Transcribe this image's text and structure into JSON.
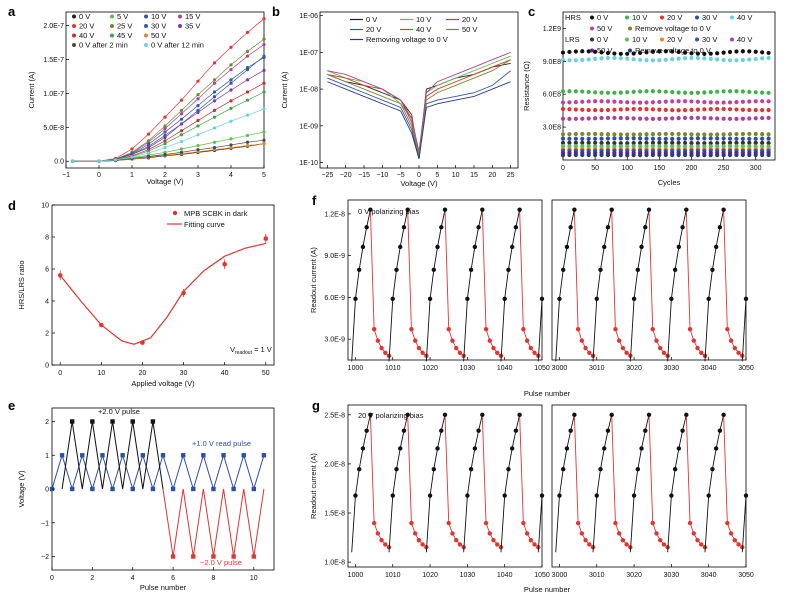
{
  "panels": {
    "a": {
      "label": "a",
      "xlabel": "Voltage (V)",
      "ylabel": "Current (A)",
      "xticks": [
        "−1",
        "0",
        "1",
        "2",
        "3",
        "4",
        "5"
      ],
      "yticks": [
        "0.0",
        "5.0E-8",
        "1.0E-7",
        "1.5E-7",
        "2.0E-7"
      ],
      "legend": [
        "0 V",
        "5 V",
        "10 V",
        "15 V",
        "20 V",
        "25 V",
        "30 V",
        "35 V",
        "40 V",
        "45 V",
        "50 V",
        "0 V after 2 min",
        "0 V after 12 min"
      ],
      "legend_colors": [
        "#222222",
        "#5cc24a",
        "#3556b0",
        "#b0409a",
        "#e03530",
        "#6f8a2e",
        "#2e5f9a",
        "#7a3ab0",
        "#c8302a",
        "#43a047",
        "#e8862a",
        "#4a4a4a",
        "#6cd0e0"
      ]
    },
    "b": {
      "label": "b",
      "xlabel": "Voltage (V)",
      "ylabel": "Current (A)",
      "xticks": [
        "−25",
        "−20",
        "−15",
        "−10",
        "−5",
        "0",
        "5",
        "10",
        "15",
        "20",
        "25"
      ],
      "yticks": [
        "1E-10",
        "1E-09",
        "1E-08",
        "1E-07",
        "1E-06"
      ],
      "legend": [
        "0 V",
        "10 V",
        "20 V",
        "20 V",
        "40 V",
        "50 V",
        "Removing voltage to 0 V"
      ],
      "legend_colors": [
        "#222222",
        "#5cc24a",
        "#e03530",
        "#3556b0",
        "#b0409a",
        "#7a8a2a",
        "#2a3a8a"
      ]
    },
    "c": {
      "label": "c",
      "xlabel": "Cycles",
      "ylabel": "Resistance (Ω)",
      "xticks": [
        "0",
        "50",
        "100",
        "150",
        "200",
        "250",
        "300"
      ],
      "yticks": [
        "3.0E8",
        "6.0E8",
        "9.0E8",
        "1.2E9"
      ],
      "hrs_label": "HRS",
      "lrs_label": "LRS",
      "hrs_legend": [
        "0 V",
        "10 V",
        "20 V",
        "30 V",
        "40 V",
        "50 V",
        "Remove voltage to 0 V"
      ],
      "lrs_legend": [
        "0 V",
        "10 V",
        "20 V",
        "30 V",
        "40 V",
        "50 V",
        "Remove voltage to 0 V"
      ],
      "hrs_colors": [
        "#111111",
        "#3fb34a",
        "#e03530",
        "#2c4fa8",
        "#6cd0e0",
        "#c040a8",
        "#7a8a2a"
      ],
      "lrs_colors": [
        "#333333",
        "#5cc24a",
        "#e8862a",
        "#3556b0",
        "#b0409a",
        "#5a2a8a",
        "#2a3a8a"
      ]
    },
    "d": {
      "label": "d",
      "xlabel": "Applied voltage (V)",
      "ylabel": "HRS/LRS ratio",
      "xticks": [
        "0",
        "10",
        "20",
        "30",
        "40",
        "50"
      ],
      "yticks": [
        "0",
        "2",
        "4",
        "6",
        "8",
        "10"
      ],
      "legend": [
        "MPB SCBK in dark",
        "Fitting curve"
      ],
      "annotation": "V",
      "annotation_sub": "readout",
      "annotation_tail": " = 1 V"
    },
    "e": {
      "label": "e",
      "xlabel": "Pulse number",
      "ylabel": "Voltage (V)",
      "xticks": [
        "0",
        "2",
        "4",
        "6",
        "8",
        "10"
      ],
      "yticks": [
        "−2",
        "−1",
        "0",
        "1",
        "2"
      ],
      "ann_write": "+2.0 V pulse",
      "ann_read": "+1.0 V read pulse",
      "ann_erase": "−2.0 V pulse"
    },
    "f": {
      "label": "f",
      "xlabel": "Pulse number",
      "ylabel": "Readout current (A)",
      "title": "0 V polarizing bias",
      "xticks_left": [
        "1000",
        "1010",
        "1020",
        "1030",
        "1040",
        "1050"
      ],
      "xticks_right": [
        "3000",
        "3010",
        "3020",
        "3030",
        "3040",
        "3050"
      ],
      "yticks": [
        "3.0E-9",
        "6.0E-9",
        "9.0E-9",
        "1.2E-8"
      ]
    },
    "g": {
      "label": "g",
      "xlabel": "Pulse number",
      "ylabel": "Readout current (A)",
      "title": "20 V polarizing bias",
      "xticks_left": [
        "1000",
        "1010",
        "1020",
        "1030",
        "1040",
        "1050"
      ],
      "xticks_right": [
        "3000",
        "3010",
        "3020",
        "3030",
        "3040",
        "3050"
      ],
      "yticks": [
        "1.0E-8",
        "1.5E-8",
        "2.0E-8",
        "2.5E-8"
      ]
    }
  },
  "chart_data": [
    {
      "panel": "a",
      "type": "line",
      "xlim": [
        -1,
        5
      ],
      "ylim": [
        -1e-08,
        2.2e-07
      ],
      "x": [
        -0.8,
        0.0,
        0.5,
        1.0,
        1.5,
        2.0,
        2.5,
        3.0,
        3.5,
        4.0,
        4.5,
        5.0
      ],
      "series": [
        {
          "name": "0 V",
          "values": [
            0,
            0,
            1e-09,
            3e-09,
            5e-09,
            8e-09,
            1e-08,
            1.3e-08,
            1.6e-08,
            1.9e-08,
            2.2e-08,
            2.6e-08
          ]
        },
        {
          "name": "5 V",
          "values": [
            0,
            0,
            2e-09,
            5e-09,
            9e-09,
            1.3e-08,
            1.8e-08,
            2.3e-08,
            2.8e-08,
            3.3e-08,
            3.8e-08,
            4.3e-08
          ]
        },
        {
          "name": "10 V",
          "values": [
            0,
            0,
            3e-09,
            1e-08,
            2e-08,
            3.5e-08,
            5.5e-08,
            7.5e-08,
            9.5e-08,
            1.15e-07,
            1.35e-07,
            1.55e-07
          ]
        },
        {
          "name": "15 V",
          "values": [
            0,
            0,
            3e-09,
            1.2e-08,
            2.8e-08,
            4.8e-08,
            7e-08,
            9.2e-08,
            1.15e-07,
            1.35e-07,
            1.55e-07,
            1.72e-07
          ]
        },
        {
          "name": "20 V",
          "values": [
            0,
            0,
            4e-09,
            1.8e-08,
            4e-08,
            6.5e-08,
            9e-08,
            1.18e-07,
            1.45e-07,
            1.68e-07,
            1.9e-07,
            2.1e-07
          ]
        },
        {
          "name": "25 V",
          "values": [
            0,
            0,
            3e-09,
            1.3e-08,
            3e-08,
            5.2e-08,
            7.5e-08,
            9.8e-08,
            1.2e-07,
            1.42e-07,
            1.62e-07,
            1.8e-07
          ]
        },
        {
          "name": "30 V",
          "values": [
            0,
            0,
            3e-09,
            1.1e-08,
            2.5e-08,
            4.3e-08,
            6.2e-08,
            8.2e-08,
            1.02e-07,
            1.2e-07,
            1.38e-07,
            1.53e-07
          ]
        },
        {
          "name": "35 V",
          "values": [
            0,
            0,
            3e-09,
            1e-08,
            2.2e-08,
            3.8e-08,
            5.5e-08,
            7.2e-08,
            8.9e-08,
            1.05e-07,
            1.2e-07,
            1.34e-07
          ]
        },
        {
          "name": "40 V",
          "values": [
            0,
            0,
            2e-09,
            8e-09,
            1.7e-08,
            3e-08,
            4.5e-08,
            6e-08,
            7.5e-08,
            8.9e-08,
            1.02e-07,
            1.15e-07
          ]
        },
        {
          "name": "45 V",
          "values": [
            0,
            0,
            2e-09,
            7e-09,
            1.5e-08,
            2.6e-08,
            3.9e-08,
            5.2e-08,
            6.5e-08,
            7.8e-08,
            9e-08,
            1.02e-07
          ]
        },
        {
          "name": "50 V",
          "values": [
            0,
            0,
            1e-09,
            3e-09,
            6e-09,
            9e-09,
            1.1e-08,
            1.4e-08,
            1.7e-08,
            2e-08,
            2.3e-08,
            2.6e-08
          ]
        },
        {
          "name": "0 V after 2 min",
          "values": [
            0,
            0,
            1e-09,
            4e-09,
            7e-09,
            1e-08,
            1.3e-08,
            1.7e-08,
            2e-08,
            2.4e-08,
            2.8e-08,
            3.1e-08
          ]
        },
        {
          "name": "0 V after 12 min",
          "values": [
            0,
            0,
            2e-09,
            6e-09,
            1.2e-08,
            2e-08,
            2.9e-08,
            3.9e-08,
            4.9e-08,
            5.9e-08,
            6.8e-08,
            7.7e-08
          ]
        }
      ]
    },
    {
      "panel": "b",
      "type": "line",
      "xlim": [
        -27,
        27
      ],
      "ylim_log10": [
        -10,
        -6
      ],
      "x": [
        -25,
        -20,
        -15,
        -10,
        -5,
        -2,
        0,
        2,
        5,
        10,
        15,
        20,
        25
      ],
      "series": [
        {
          "name": "0 V",
          "log10_values": [
            -7.6,
            -7.8,
            -7.9,
            -8.1,
            -8.3,
            -8.7,
            -9.9,
            -8.0,
            -7.9,
            -7.7,
            -7.6,
            -7.4,
            -7.3
          ]
        },
        {
          "name": "10 V",
          "log10_values": [
            -7.5,
            -7.7,
            -7.8,
            -8.0,
            -8.4,
            -8.8,
            -9.8,
            -8.1,
            -7.9,
            -7.7,
            -7.5,
            -7.3,
            -7.1
          ]
        },
        {
          "name": "20 V",
          "log10_values": [
            -7.6,
            -7.7,
            -7.9,
            -8.0,
            -8.3,
            -8.9,
            -9.9,
            -8.2,
            -8.0,
            -7.8,
            -7.6,
            -7.4,
            -7.2
          ]
        },
        {
          "name": "20 V",
          "log10_values": [
            -7.7,
            -7.9,
            -8.1,
            -8.3,
            -8.5,
            -9.1,
            -9.9,
            -8.4,
            -8.3,
            -8.2,
            -8.1,
            -7.9,
            -7.5
          ]
        },
        {
          "name": "40 V",
          "log10_values": [
            -7.5,
            -7.6,
            -7.8,
            -8.0,
            -8.3,
            -8.8,
            -9.7,
            -8.1,
            -7.8,
            -7.6,
            -7.4,
            -7.2,
            -7.0
          ]
        },
        {
          "name": "50 V",
          "log10_values": [
            -7.6,
            -7.8,
            -8.0,
            -8.2,
            -8.4,
            -9.0,
            -9.8,
            -8.3,
            -8.1,
            -7.9,
            -7.7,
            -7.5,
            -7.2
          ]
        },
        {
          "name": "Removing voltage to 0 V",
          "log10_values": [
            -7.8,
            -8.0,
            -8.2,
            -8.4,
            -8.6,
            -9.2,
            -9.9,
            -8.5,
            -8.4,
            -8.3,
            -8.2,
            -8.0,
            -7.8
          ]
        }
      ]
    },
    {
      "panel": "c",
      "type": "scatter",
      "xlim": [
        0,
        330
      ],
      "ylim": [
        0,
        1350000000.0
      ],
      "x_step": 10,
      "hrs_levels": [
        980000000.0,
        620000000.0,
        460000000.0,
        195000000.0,
        920000000.0,
        530000000.0,
        235000000.0
      ],
      "lrs_levels": [
        155000000.0,
        125000000.0,
        100000000.0,
        85000000.0,
        380000000.0,
        65000000.0,
        45000000.0
      ]
    },
    {
      "panel": "d",
      "type": "scatter",
      "xlim": [
        -2,
        52
      ],
      "ylim": [
        0,
        10
      ],
      "points": [
        {
          "x": 0,
          "y": 5.6
        },
        {
          "x": 10,
          "y": 2.5
        },
        {
          "x": 20,
          "y": 1.4
        },
        {
          "x": 30,
          "y": 4.5
        },
        {
          "x": 40,
          "y": 6.3
        },
        {
          "x": 50,
          "y": 7.9
        }
      ],
      "errors": [
        0.3,
        0.1,
        0.1,
        0.25,
        0.3,
        0.3
      ],
      "fit": {
        "x": [
          0,
          5,
          10,
          15,
          18,
          22,
          26,
          30,
          35,
          40,
          45,
          50
        ],
        "y": [
          5.6,
          4.0,
          2.5,
          1.5,
          1.3,
          1.7,
          3.0,
          4.6,
          5.9,
          6.8,
          7.3,
          7.6
        ]
      }
    },
    {
      "panel": "e",
      "type": "line",
      "xlim": [
        0,
        11
      ],
      "ylim": [
        -2.4,
        2.4
      ],
      "segment1": {
        "x": [
          0,
          0.5,
          1,
          1.5,
          2,
          2.5,
          3,
          3.5,
          4,
          4.5,
          5,
          5.5
        ],
        "y": [
          0,
          1,
          2,
          1,
          2,
          1,
          2,
          1,
          2,
          1,
          2,
          1
        ]
      },
      "segment2": {
        "x": [
          5.5,
          6,
          6.5,
          7,
          7.5,
          8,
          8.5,
          9,
          9.5,
          10,
          10.5,
          10.7
        ],
        "y": [
          1,
          -2,
          1,
          -2,
          1,
          -2,
          1,
          -2,
          1,
          -2,
          1,
          0
        ]
      },
      "zero_baseline": [
        0.5,
        1.5,
        2.5,
        3.5,
        4.5,
        5.5,
        6.5,
        7.5,
        8.5,
        9.5,
        10.5
      ]
    },
    {
      "panel": "f",
      "type": "line",
      "ylim": [
        1.5e-09,
        1.3e-08
      ],
      "xlim_left": [
        998,
        1050
      ],
      "xlim_right": [
        2998,
        3050
      ],
      "period": 10,
      "high": 1.23e-08,
      "low": 1.4e-09
    },
    {
      "panel": "g",
      "type": "line",
      "ylim": [
        9.5e-09,
        2.6e-08
      ],
      "xlim_left": [
        998,
        1050
      ],
      "xlim_right": [
        2998,
        3050
      ],
      "period": 10,
      "high": 2.5e-08,
      "low": 1.1e-08
    }
  ]
}
